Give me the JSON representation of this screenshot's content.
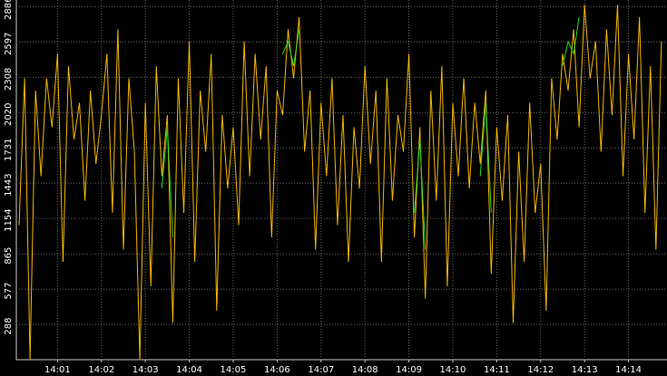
{
  "chart_data": {
    "type": "line",
    "categories": [
      null,
      null,
      null,
      null,
      null,
      null,
      null,
      "14:01",
      null,
      null,
      null,
      null,
      null,
      null,
      null,
      "14:02",
      null,
      null,
      null,
      null,
      null,
      null,
      null,
      "14:03",
      null,
      null,
      null,
      null,
      null,
      null,
      null,
      "14:04",
      null,
      null,
      null,
      null,
      null,
      null,
      null,
      "14:05",
      null,
      null,
      null,
      null,
      null,
      null,
      null,
      "14:06",
      null,
      null,
      null,
      null,
      null,
      null,
      null,
      "14:07",
      null,
      null,
      null,
      null,
      null,
      null,
      null,
      "14:08",
      null,
      null,
      null,
      null,
      null,
      null,
      null,
      "14:09",
      null,
      null,
      null,
      null,
      null,
      null,
      null,
      "14:10",
      null,
      null,
      null,
      null,
      null,
      null,
      null,
      "14:11",
      null,
      null,
      null,
      null,
      null,
      null,
      null,
      "14:12",
      null,
      null,
      null,
      null,
      null,
      null,
      null,
      "14:13",
      null,
      null,
      null,
      null,
      null,
      null,
      null,
      "14:14",
      null,
      null,
      null,
      null,
      null,
      null
    ],
    "series": [
      {
        "color": "#f5b800",
        "values": [
          1100,
          2300,
          0,
          2200,
          1500,
          2300,
          1900,
          2500,
          800,
          2400,
          1800,
          2100,
          1300,
          2200,
          1600,
          2000,
          2500,
          1200,
          2700,
          900,
          2300,
          1700,
          0,
          2100,
          600,
          2400,
          1500,
          2000,
          300,
          2300,
          1200,
          2600,
          800,
          2200,
          1700,
          2500,
          400,
          2000,
          1400,
          1900,
          1100,
          2600,
          1500,
          2500,
          1800,
          2400,
          1000,
          2200,
          2000,
          2700,
          2300,
          2800,
          1700,
          2200,
          900,
          2100,
          1500,
          2300,
          1100,
          2000,
          800,
          1900,
          1400,
          2400,
          1600,
          2200,
          800,
          2300,
          1300,
          2000,
          1700,
          2500,
          1000,
          1900,
          500,
          2200,
          1300,
          2400,
          600,
          2100,
          1500,
          2300,
          1400,
          2100,
          1600,
          2200,
          700,
          1900,
          1300,
          2000,
          300,
          1700,
          800,
          2100,
          1200,
          1600,
          400,
          2300,
          1800,
          2500,
          2200,
          2700,
          1900,
          2900,
          2300,
          2600,
          1700,
          2700,
          2000,
          2900,
          1500,
          2500,
          1800,
          2800,
          1200,
          2400,
          900,
          2600
        ]
      },
      {
        "color": "#22dd22",
        "values": [
          null,
          null,
          null,
          null,
          null,
          null,
          null,
          null,
          null,
          null,
          null,
          null,
          null,
          null,
          null,
          null,
          null,
          null,
          null,
          null,
          null,
          null,
          null,
          null,
          null,
          null,
          1400,
          1900,
          1000,
          null,
          null,
          null,
          null,
          null,
          null,
          null,
          null,
          null,
          null,
          null,
          null,
          null,
          null,
          null,
          null,
          null,
          null,
          null,
          2500,
          2600,
          2400,
          2700,
          null,
          null,
          null,
          null,
          null,
          null,
          null,
          null,
          null,
          null,
          null,
          null,
          null,
          null,
          null,
          null,
          null,
          null,
          null,
          null,
          1200,
          1800,
          900,
          null,
          null,
          null,
          null,
          null,
          null,
          null,
          null,
          null,
          1500,
          2100,
          1200,
          null,
          null,
          null,
          null,
          null,
          null,
          null,
          null,
          null,
          null,
          null,
          null,
          2400,
          2600,
          2500,
          2800,
          null,
          null,
          null,
          null,
          null,
          null,
          null,
          null,
          null,
          null,
          null,
          null,
          null,
          null,
          null
        ]
      }
    ],
    "ylim": [
      0,
      2940
    ],
    "yticks": [
      288,
      577,
      865,
      1154,
      1443,
      1731,
      2020,
      2308,
      2597,
      2886
    ],
    "grid": true
  }
}
